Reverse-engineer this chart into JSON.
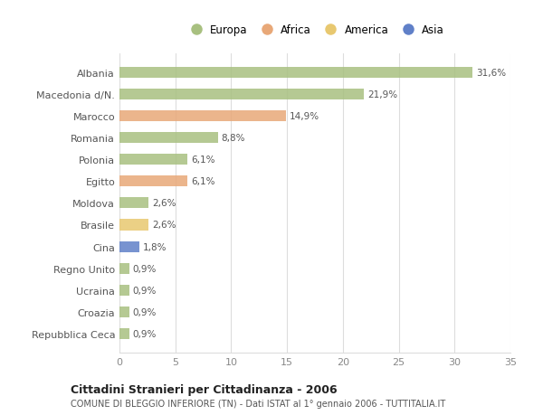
{
  "categories": [
    "Albania",
    "Macedonia d/N.",
    "Marocco",
    "Romania",
    "Polonia",
    "Egitto",
    "Moldova",
    "Brasile",
    "Cina",
    "Regno Unito",
    "Ucraina",
    "Croazia",
    "Repubblica Ceca"
  ],
  "values": [
    31.6,
    21.9,
    14.9,
    8.8,
    6.1,
    6.1,
    2.6,
    2.6,
    1.8,
    0.9,
    0.9,
    0.9,
    0.9
  ],
  "labels": [
    "31,6%",
    "21,9%",
    "14,9%",
    "8,8%",
    "6,1%",
    "6,1%",
    "2,6%",
    "2,6%",
    "1,8%",
    "0,9%",
    "0,9%",
    "0,9%",
    "0,9%"
  ],
  "colors": [
    "#a8c080",
    "#a8c080",
    "#e8a878",
    "#a8c080",
    "#a8c080",
    "#e8a878",
    "#a8c080",
    "#e8c870",
    "#6080c8",
    "#a8c080",
    "#a8c080",
    "#a8c080",
    "#a8c080"
  ],
  "legend_labels": [
    "Europa",
    "Africa",
    "America",
    "Asia"
  ],
  "legend_colors": [
    "#a8c080",
    "#e8a878",
    "#e8c870",
    "#6080c8"
  ],
  "title": "Cittadini Stranieri per Cittadinanza - 2006",
  "subtitle": "COMUNE DI BLEGGIO INFERIORE (TN) - Dati ISTAT al 1° gennaio 2006 - TUTTITALIA.IT",
  "xlim": [
    0,
    35
  ],
  "xticks": [
    0,
    5,
    10,
    15,
    20,
    25,
    30,
    35
  ],
  "background_color": "#ffffff",
  "grid_color": "#dddddd",
  "bar_height": 0.5
}
